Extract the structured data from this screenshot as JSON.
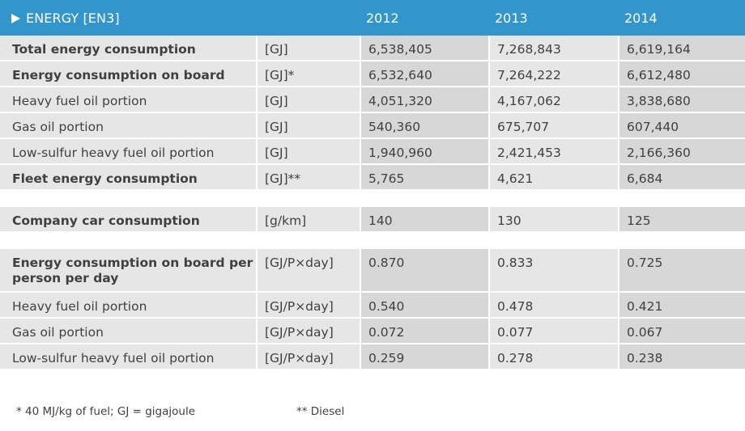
{
  "header": {
    "title": "ENERGY [EN3]",
    "years": [
      "2012",
      "2013",
      "2014"
    ]
  },
  "groups": [
    {
      "rows": [
        {
          "label": "Total energy consumption",
          "unit": "[GJ]",
          "values": [
            "6,538,405",
            "7,268,843",
            "6,619,164"
          ],
          "bold": true
        },
        {
          "label": "Energy consumption on board",
          "unit": "[GJ]*",
          "values": [
            "6,532,640",
            "7,264,222",
            "6,612,480"
          ],
          "bold": true
        },
        {
          "label": "Heavy fuel oil portion",
          "unit": "[GJ]",
          "values": [
            "4,051,320",
            "4,167,062",
            "3,838,680"
          ],
          "bold": false
        },
        {
          "label": "Gas oil portion",
          "unit": "[GJ]",
          "values": [
            "540,360",
            "675,707",
            "607,440"
          ],
          "bold": false
        },
        {
          "label": "Low-sulfur heavy fuel oil portion",
          "unit": "[GJ]",
          "values": [
            "1,940,960",
            "2,421,453",
            "2,166,360"
          ],
          "bold": false
        },
        {
          "label": "Fleet energy consumption",
          "unit": "[GJ]**",
          "values": [
            "5,765",
            "4,621",
            "6,684"
          ],
          "bold": true
        }
      ]
    },
    {
      "rows": [
        {
          "label": "Company car consumption",
          "unit": "[g/km]",
          "values": [
            "140",
            "130",
            "125"
          ],
          "bold": true
        }
      ]
    },
    {
      "rows": [
        {
          "label": "Energy consumption on board per person per day",
          "unit": "[GJ/P×day]",
          "values": [
            "0.870",
            "0.833",
            "0.725"
          ],
          "bold": true,
          "tall": true
        },
        {
          "label": "Heavy fuel oil portion",
          "unit": "[GJ/P×day]",
          "values": [
            "0.540",
            "0.478",
            "0.421"
          ],
          "bold": false
        },
        {
          "label": "Gas oil portion",
          "unit": "[GJ/P×day]",
          "values": [
            "0.072",
            "0.077",
            "0.067"
          ],
          "bold": false
        },
        {
          "label": "Low-sulfur heavy fuel oil portion",
          "unit": "[GJ/P×day]",
          "values": [
            "0.259",
            "0.278",
            "0.238"
          ],
          "bold": false
        }
      ]
    }
  ],
  "footnotes": {
    "fuel": "* 40 MJ/kg of fuel; GJ = gigajoule",
    "diesel": "** Diesel"
  }
}
